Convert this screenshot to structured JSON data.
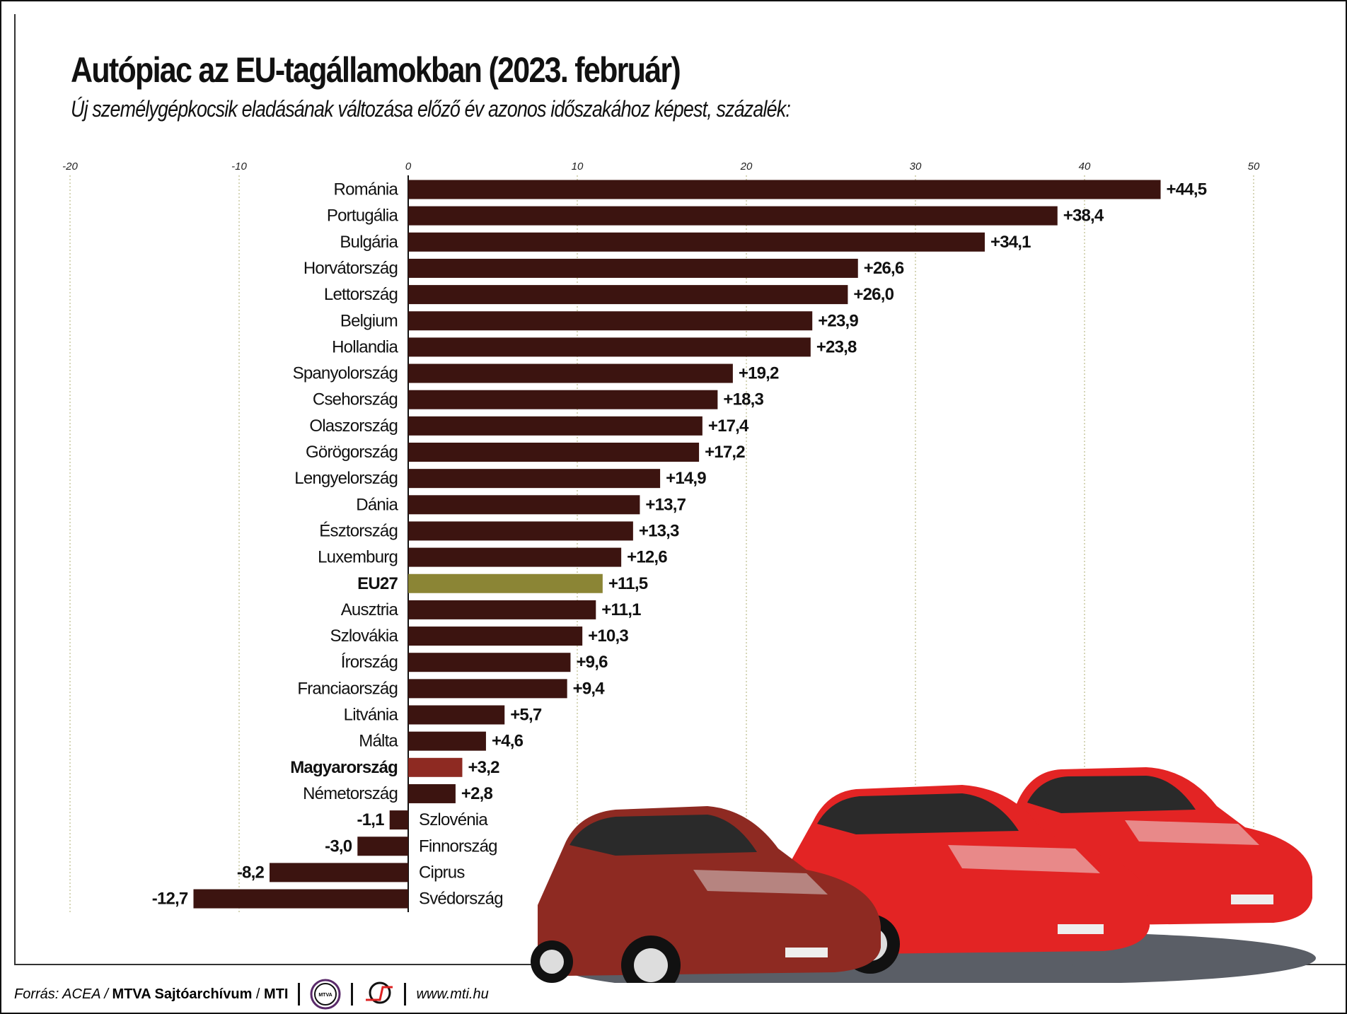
{
  "title": "Autópiac az EU-tagállamokban (2023. február)",
  "subtitle": "Új személygépkocsik eladásának változása előző év azonos időszakához képest, százalék:",
  "chart_data": {
    "type": "bar",
    "orientation": "horizontal",
    "title": "Autópiac az EU-tagállamokban (2023. február)",
    "subtitle": "Új személygépkocsik eladásának változása előző év azonos időszakához képest, százalék:",
    "xlim": [
      -20,
      50
    ],
    "ticks": [
      -20,
      -10,
      0,
      10,
      20,
      30,
      40,
      50
    ],
    "tick_labels": [
      "-20",
      "-10",
      "0",
      "10",
      "20",
      "30",
      "40",
      "50"
    ],
    "grid": true,
    "categories": [
      "Románia",
      "Portugália",
      "Bulgária",
      "Horvátország",
      "Lettország",
      "Belgium",
      "Hollandia",
      "Spanyolország",
      "Csehország",
      "Olaszország",
      "Görögország",
      "Lengyelország",
      "Dánia",
      "Észtország",
      "Luxemburg",
      "EU27",
      "Ausztria",
      "Szlovákia",
      "Írország",
      "Franciaország",
      "Litvánia",
      "Málta",
      "Magyarország",
      "Németország",
      "Szlovénia",
      "Finnország",
      "Ciprus",
      "Svédország"
    ],
    "values": [
      44.5,
      38.4,
      34.1,
      26.6,
      26.0,
      23.9,
      23.8,
      19.2,
      18.3,
      17.4,
      17.2,
      14.9,
      13.7,
      13.3,
      12.6,
      11.5,
      11.1,
      10.3,
      9.6,
      9.4,
      5.7,
      4.6,
      3.2,
      2.8,
      -1.1,
      -3.0,
      -8.2,
      -12.7
    ],
    "value_labels": [
      "+44,5",
      "+38,4",
      "+34,1",
      "+26,6",
      "+26,0",
      "+23,9",
      "+23,8",
      "+19,2",
      "+18,3",
      "+17,4",
      "+17,2",
      "+14,9",
      "+13,7",
      "+13,3",
      "+12,6",
      "+11,5",
      "+11,1",
      "+10,3",
      "+9,6",
      "+9,4",
      "+5,7",
      "+4,6",
      "+3,2",
      "+2,8",
      "-1,1",
      "-3,0",
      "-8,2",
      "-12,7"
    ],
    "highlight": {
      "EU27": "#8b8535",
      "Magyarország": "#8e2a22"
    },
    "bold_categories": [
      "EU27",
      "Magyarország"
    ],
    "colors": {
      "bar": "#3c1410",
      "grid": "#c8c8a0"
    }
  },
  "footer": {
    "source_prefix": "Forrás: ACEA / ",
    "source_bold": "MTVA Sajtóarchívum",
    "source_sep": " / ",
    "source_mti": "MTI",
    "mtva_logo": "MTVA",
    "url": "www.mti.hu"
  }
}
